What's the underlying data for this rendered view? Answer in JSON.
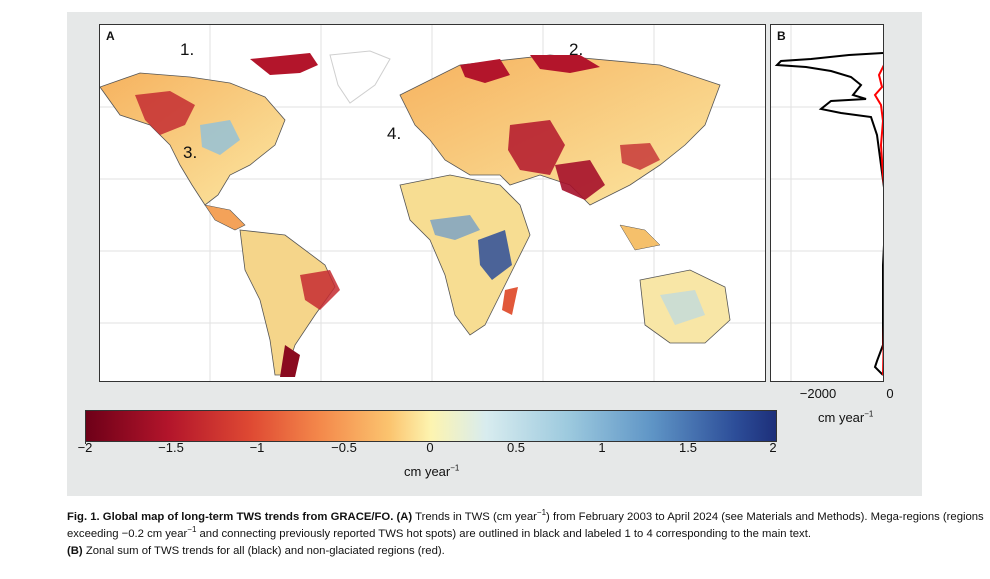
{
  "panel_a": {
    "label": "A",
    "region_labels": [
      "1.",
      "2.",
      "3.",
      "4."
    ]
  },
  "panel_b": {
    "label": "B",
    "x_ticks": [
      "−2000",
      "0"
    ],
    "x_label_base": "cm year",
    "x_label_exp": "−1"
  },
  "colorbar": {
    "ticks": [
      "−2",
      "−1.5",
      "−1",
      "−0.5",
      "0",
      "0.5",
      "1",
      "1.5",
      "2"
    ],
    "label_base": "cm year",
    "label_exp": "−1"
  },
  "colors": {
    "all_regions": "#000000",
    "non_glaciated": "#ff0000",
    "drying": "#b3152b",
    "wetting": "#2d4e99"
  },
  "caption": {
    "fig_label": "Fig. 1. Global map of long-term TWS trends from GRACE/FO.",
    "part_a_label": "(A)",
    "part_a_1": " Trends in TWS (cm year",
    "part_a_exp1": "−1",
    "part_a_2": ") from February 2003 to April 2024 (see Materials and Methods). Mega-regions (regions exceeding −0.2 cm year",
    "part_a_exp2": "−1",
    "part_a_3": " and connecting previously reported TWS hot spots) are outlined in black and labeled 1 to 4 corresponding to the main text.",
    "part_b_label": "(B)",
    "part_b": " Zonal sum of TWS trends for all (black) and non-glaciated regions (red)."
  }
}
